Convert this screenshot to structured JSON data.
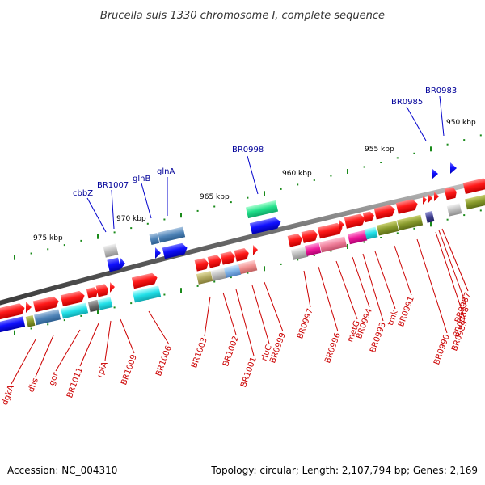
{
  "title": "Brucella suis 1330 chromosome I, complete sequence",
  "footer": {
    "accession": "Accession: NC_004310",
    "summary": "Topology: circular; Length: 2,107,794 bp; Genes: 2,169"
  },
  "ticks": [
    "975 kbp",
    "970 kbp",
    "965 kbp",
    "960 kbp",
    "955 kbp",
    "950 kbp"
  ],
  "genes_top": [
    "cbbZ",
    "BR1007",
    "glnB",
    "glnA",
    "BR0998",
    "BR0985",
    "BR0983"
  ],
  "genes_bottom": [
    "dgkA",
    "dhs",
    "gor",
    "BR1011",
    "rpiA",
    "BR1009",
    "BR1006",
    "BR1003",
    "BR1002",
    "BR1001",
    "rluC",
    "BR0999",
    "BR0997",
    "BR0996",
    "metG",
    "BR0994",
    "BR0993",
    "tmk",
    "BR0991",
    "BR0990",
    "BR0989",
    "BR0988",
    "BR0987"
  ],
  "colors": {
    "backbone": "#7a7a7a",
    "forward_gene": "#ee1111",
    "reverse_gene": "#0000ee",
    "label_red": "#cc0000",
    "label_blue": "#000099",
    "tick": "#1a8a1a"
  }
}
